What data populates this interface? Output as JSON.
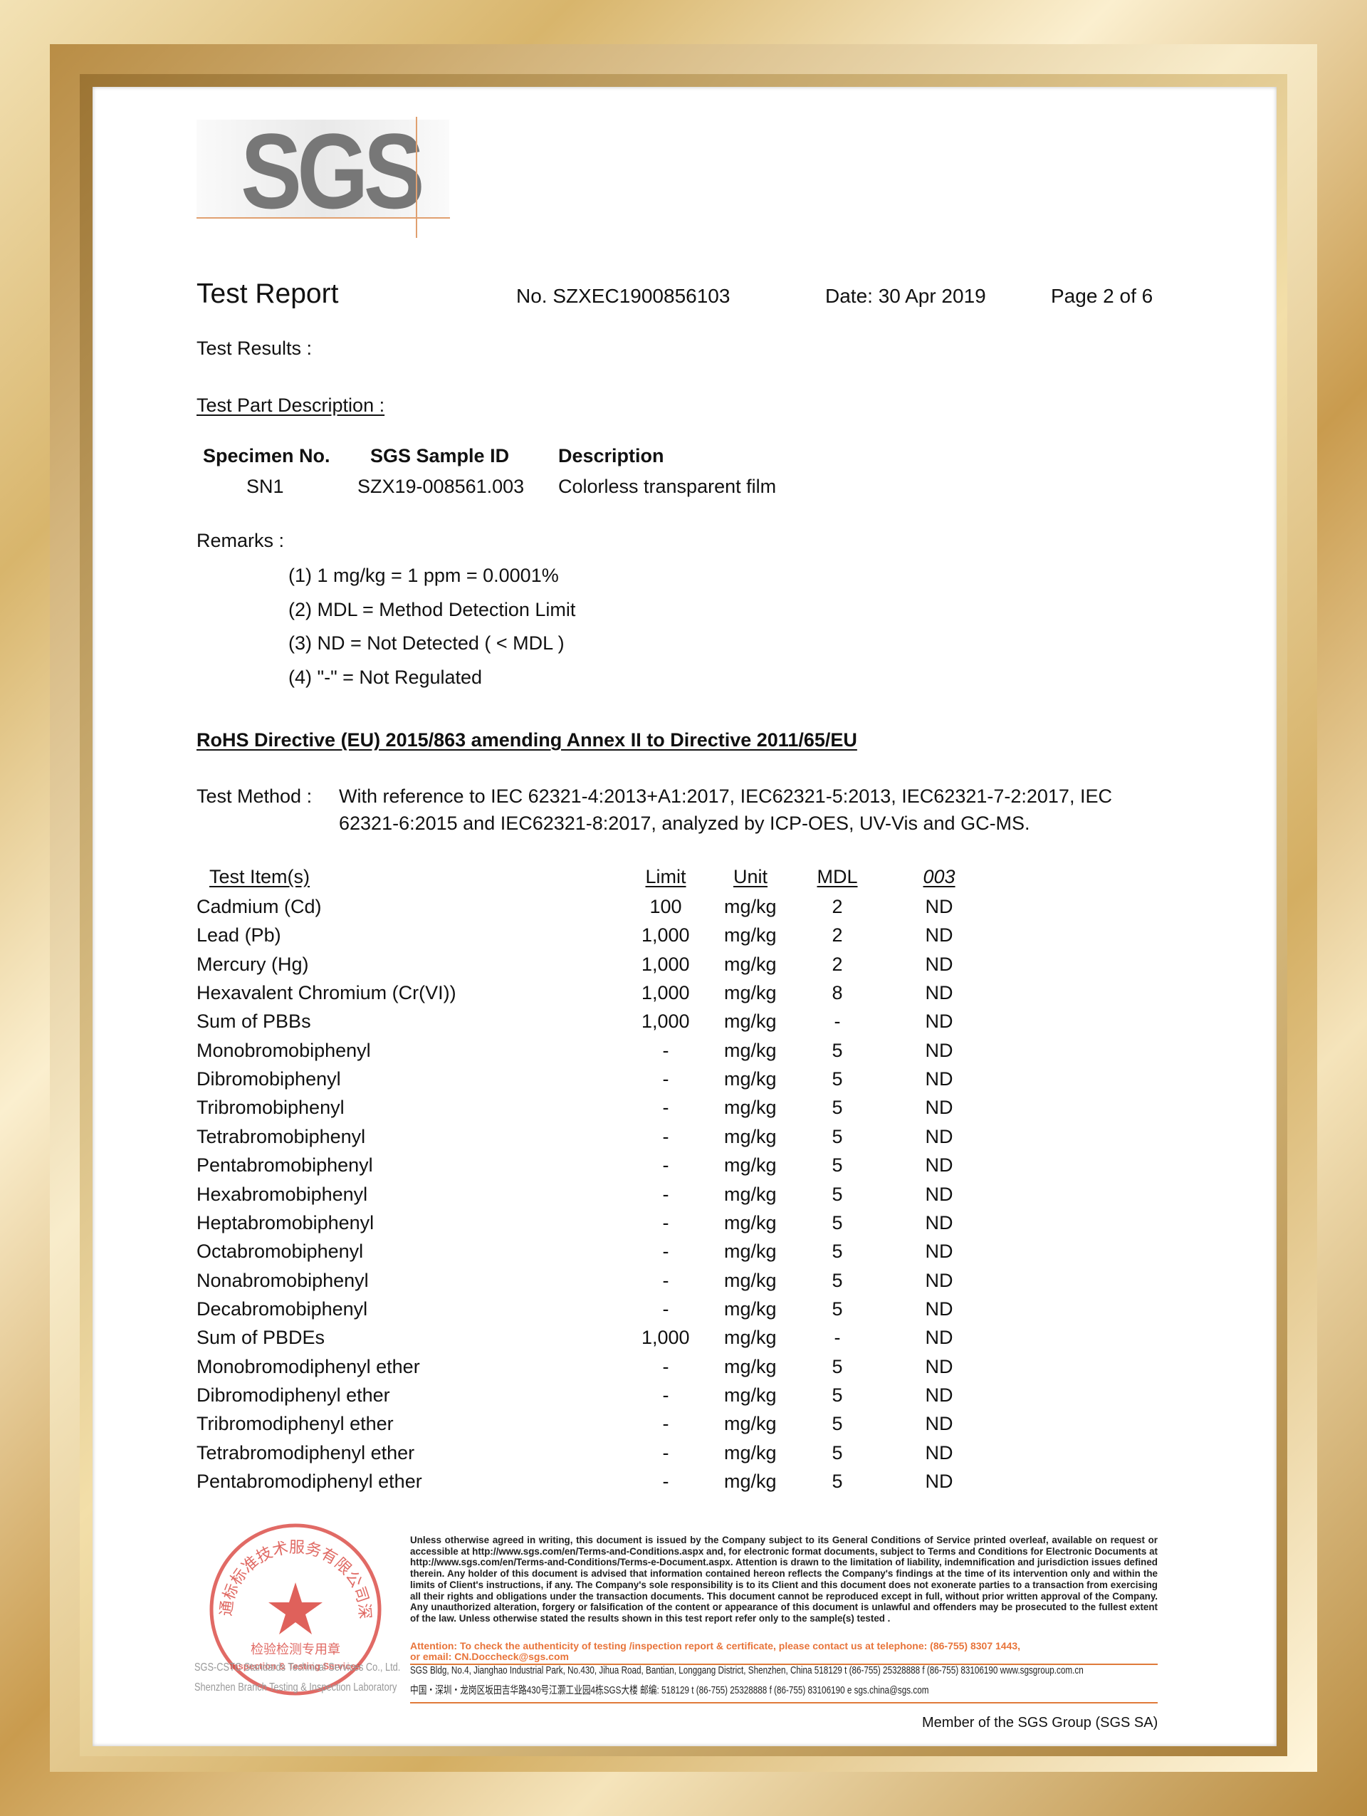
{
  "header": {
    "logo": "SGS",
    "title": "Test Report",
    "number": "No. SZXEC1900856103",
    "date": "Date: 30 Apr 2019",
    "page": "Page 2 of 6"
  },
  "results_label": "Test Results :",
  "part_description": {
    "heading": "Test Part Description :",
    "columns": [
      "Specimen No.",
      "SGS Sample ID",
      "Description"
    ],
    "rows": [
      [
        "SN1",
        "SZX19-008561.003",
        "Colorless transparent film"
      ]
    ]
  },
  "remarks": {
    "label": "Remarks :",
    "items": [
      "(1) 1 mg/kg = 1 ppm = 0.0001%",
      "(2) MDL = Method Detection Limit",
      "(3) ND = Not Detected ( < MDL )",
      "(4) \"-\" = Not Regulated"
    ]
  },
  "directive": "RoHS Directive (EU) 2015/863 amending Annex II to Directive 2011/65/EU",
  "test_method": {
    "label": "Test Method :",
    "lines": [
      "With reference to IEC 62321-4:2013+A1:2017, IEC62321-5:2013, IEC62321-7-2:2017, IEC",
      "62321-6:2015 and IEC62321-8:2017, analyzed by ICP-OES, UV-Vis and GC-MS."
    ]
  },
  "table": {
    "columns": [
      "Test Item(s)",
      "Limit",
      "Unit",
      "MDL",
      "003"
    ],
    "rows": [
      [
        "Cadmium (Cd)",
        "100",
        "mg/kg",
        "2",
        "ND"
      ],
      [
        "Lead (Pb)",
        "1,000",
        "mg/kg",
        "2",
        "ND"
      ],
      [
        "Mercury (Hg)",
        "1,000",
        "mg/kg",
        "2",
        "ND"
      ],
      [
        "Hexavalent Chromium (Cr(VI))",
        "1,000",
        "mg/kg",
        "8",
        "ND"
      ],
      [
        "Sum of PBBs",
        "1,000",
        "mg/kg",
        "-",
        "ND"
      ],
      [
        "Monobromobiphenyl",
        "-",
        "mg/kg",
        "5",
        "ND"
      ],
      [
        "Dibromobiphenyl",
        "-",
        "mg/kg",
        "5",
        "ND"
      ],
      [
        "Tribromobiphenyl",
        "-",
        "mg/kg",
        "5",
        "ND"
      ],
      [
        "Tetrabromobiphenyl",
        "-",
        "mg/kg",
        "5",
        "ND"
      ],
      [
        "Pentabromobiphenyl",
        "-",
        "mg/kg",
        "5",
        "ND"
      ],
      [
        "Hexabromobiphenyl",
        "-",
        "mg/kg",
        "5",
        "ND"
      ],
      [
        "Heptabromobiphenyl",
        "-",
        "mg/kg",
        "5",
        "ND"
      ],
      [
        "Octabromobiphenyl",
        "-",
        "mg/kg",
        "5",
        "ND"
      ],
      [
        "Nonabromobiphenyl",
        "-",
        "mg/kg",
        "5",
        "ND"
      ],
      [
        "Decabromobiphenyl",
        "-",
        "mg/kg",
        "5",
        "ND"
      ],
      [
        "Sum of PBDEs",
        "1,000",
        "mg/kg",
        "-",
        "ND"
      ],
      [
        "Monobromodiphenyl ether",
        "-",
        "mg/kg",
        "5",
        "ND"
      ],
      [
        "Dibromodiphenyl ether",
        "-",
        "mg/kg",
        "5",
        "ND"
      ],
      [
        "Tribromodiphenyl ether",
        "-",
        "mg/kg",
        "5",
        "ND"
      ],
      [
        "Tetrabromodiphenyl ether",
        "-",
        "mg/kg",
        "5",
        "ND"
      ],
      [
        "Pentabromodiphenyl ether",
        "-",
        "mg/kg",
        "5",
        "ND"
      ]
    ]
  },
  "footer": {
    "disclaimer": "Unless otherwise agreed in writing, this document is issued by the Company subject to its General Conditions of Service printed overleaf, available on request or accessible at http://www.sgs.com/en/Terms-and-Conditions.aspx and, for electronic format documents, subject to Terms and Conditions for Electronic Documents at http://www.sgs.com/en/Terms-and-Conditions/Terms-e-Document.aspx. Attention is drawn to the limitation of liability, indemnification and jurisdiction issues defined therein. Any holder of this document is advised that information contained hereon reflects the Company's findings at the time of its intervention only and within the limits of Client's instructions, if any. The Company's sole responsibility is to its Client and this document does not exonerate parties to a transaction from exercising all their rights and obligations under the transaction documents. This document cannot be reproduced except in full, without prior written approval of the Company. Any unauthorized alteration, forgery or falsification of the content or appearance of this document is unlawful and offenders may be prosecuted to the fullest extent of the law. Unless otherwise stated the results shown in this test report refer only to the sample(s) tested .",
    "attention": [
      "Attention: To check the authenticity of testing /inspection report & certificate, please contact us at telephone: (86-755) 8307 1443,",
      "or email: CN.Doccheck@sgs.com"
    ],
    "address_en": "SGS Bldg, No.4, Jianghao Industrial Park, No.430, Jihua Road, Bantian, Longgang District, Shenzhen, China  518129    t (86-755) 25328888    f (86-755) 83106190    www.sgsgroup.com.cn",
    "address_cn": "中国・深圳・龙岗区坂田吉华路430号江灏工业园4栋SGS大楼    邮编: 518129    t (86-755) 25328888    f (86-755) 83106190    e sgs.china@sgs.com",
    "company_lines": [
      "SGS-CSTC Standards Technical Services Co., Ltd.",
      "Shenzhen Branch Testing & Inspection Laboratory"
    ],
    "member": "Member of the SGS Group (SGS SA)"
  },
  "stamp": {
    "ring": "通标标准技术服务有限公司深圳分公司",
    "center": "检验检测专用章",
    "english": "Inspection & Testing Services"
  }
}
